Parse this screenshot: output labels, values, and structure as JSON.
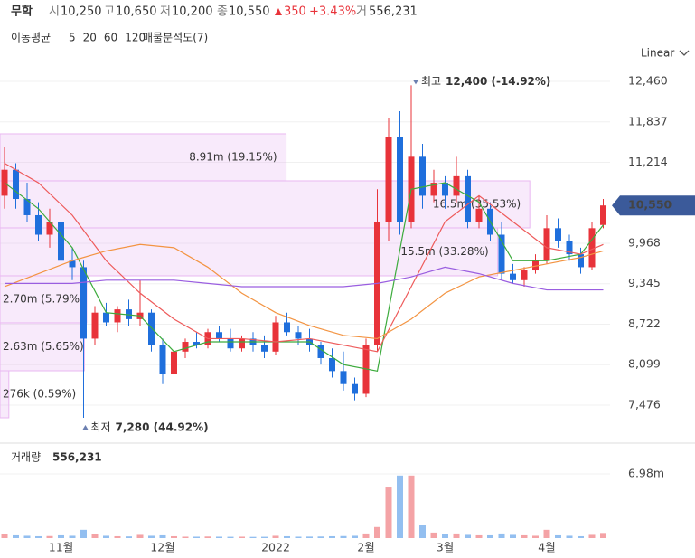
{
  "header": {
    "name": "무학",
    "open_label": "시",
    "open": "10,250",
    "high_label": "고",
    "high": "10,650",
    "low_label": "저",
    "low": "10,200",
    "close_label": "종",
    "close": "10,550",
    "change": "350",
    "change_pct": "+3.43%",
    "volume_label": "거",
    "volume": "556,231"
  },
  "indicator_bar": {
    "ma_title": "이동평균",
    "profile_title": "매물분석도(7)",
    "scale_button": "Linear"
  },
  "chart_data": {
    "type": "candlestick",
    "categories": [
      null,
      null,
      null,
      null,
      null,
      "11월",
      null,
      null,
      null,
      null,
      null,
      null,
      null,
      null,
      "12월",
      null,
      null,
      null,
      null,
      null,
      null,
      null,
      null,
      null,
      "2022",
      null,
      null,
      null,
      null,
      null,
      null,
      null,
      "2월",
      null,
      null,
      null,
      null,
      null,
      null,
      "3월",
      null,
      null,
      null,
      null,
      null,
      null,
      null,
      null,
      "4월",
      null,
      null,
      null,
      null,
      null
    ],
    "candles": {
      "up_color": "#e8333a",
      "down_color": "#1f6fdc",
      "open": [
        10700,
        11100,
        10650,
        10400,
        10100,
        10300,
        9700,
        9600,
        8500,
        8900,
        8750,
        8950,
        8800,
        8900,
        8400,
        7950,
        8300,
        8450,
        8400,
        8600,
        8500,
        8350,
        8500,
        8400,
        8300,
        8750,
        8600,
        8500,
        8400,
        8200,
        8000,
        7800,
        7650,
        8400,
        10300,
        11600,
        10300,
        11300,
        10700,
        10900,
        10700,
        11000,
        10300,
        10500,
        10100,
        9500,
        9400,
        9550,
        9700,
        10200,
        10000,
        9800,
        9600,
        10250
      ],
      "high": [
        11450,
        11200,
        10900,
        10600,
        10500,
        10350,
        9900,
        9700,
        9000,
        9050,
        9000,
        9100,
        9400,
        8950,
        8500,
        8350,
        8500,
        8600,
        8650,
        8700,
        8650,
        8550,
        8600,
        8550,
        8850,
        8900,
        8700,
        8650,
        8450,
        8350,
        8300,
        7900,
        8500,
        10800,
        11900,
        12000,
        12400,
        11500,
        11100,
        11000,
        11300,
        11100,
        10700,
        10600,
        10300,
        9650,
        9600,
        9800,
        10400,
        10350,
        10100,
        9900,
        10300,
        10650
      ],
      "low": [
        10500,
        10500,
        10300,
        10000,
        9900,
        9600,
        9400,
        7280,
        8400,
        8700,
        8600,
        8700,
        8700,
        8300,
        7800,
        7900,
        8200,
        8350,
        8350,
        8450,
        8300,
        8300,
        8300,
        8200,
        8250,
        8550,
        8400,
        8300,
        8100,
        7900,
        7700,
        7550,
        7600,
        8300,
        10000,
        10100,
        10200,
        10500,
        10600,
        10500,
        10600,
        10200,
        10200,
        10000,
        9400,
        9350,
        9300,
        9500,
        9650,
        9900,
        9700,
        9500,
        9550,
        10200
      ],
      "close": [
        11100,
        10650,
        10400,
        10100,
        10300,
        9700,
        9600,
        8500,
        8900,
        8750,
        8950,
        8800,
        8900,
        8400,
        7950,
        8300,
        8450,
        8400,
        8600,
        8500,
        8350,
        8500,
        8400,
        8300,
        8750,
        8600,
        8500,
        8400,
        8200,
        8000,
        7800,
        7650,
        8400,
        10300,
        11600,
        10300,
        11300,
        10700,
        10900,
        10700,
        11000,
        10300,
        10500,
        10100,
        9500,
        9400,
        9550,
        9700,
        10200,
        10000,
        9800,
        9600,
        10200,
        10550
      ]
    },
    "ylim": [
      6891,
      12669
    ],
    "yticks": [
      {
        "value": 7476,
        "label": "7,476"
      },
      {
        "value": 8099,
        "label": "8,099"
      },
      {
        "value": 8722,
        "label": "8,722"
      },
      {
        "value": 9345,
        "label": "9,345"
      },
      {
        "value": 9968,
        "label": "9,968"
      },
      {
        "value": 11214,
        "label": "11,214"
      },
      {
        "value": 11837,
        "label": "11,837"
      },
      {
        "value": 12460,
        "label": "12,460"
      }
    ],
    "grid": true,
    "current_price": {
      "value": 10550,
      "label": "10,550",
      "color": "#3b5a9a"
    },
    "price_high": {
      "prefix": "최고",
      "value": 12400,
      "label": "12,400 (-14.92%)"
    },
    "price_low": {
      "prefix": "최저",
      "value": 7280,
      "label": "7,280 (44.92%)"
    },
    "ma_x": [
      0,
      3,
      6,
      9,
      12,
      15,
      18,
      21,
      24,
      27,
      30,
      33,
      36,
      39,
      42,
      45,
      48,
      51,
      53
    ],
    "moving_averages": [
      {
        "name": "5",
        "color": "#3cab3c",
        "values": [
          10900,
          10500,
          9900,
          8900,
          8850,
          8300,
          8450,
          8450,
          8450,
          8450,
          8100,
          8000,
          10800,
          10900,
          10600,
          9700,
          9700,
          9800,
          10250
        ]
      },
      {
        "name": "20",
        "color": "#ee5a5a",
        "values": [
          11200,
          10900,
          10400,
          9700,
          9200,
          8800,
          8500,
          8500,
          8450,
          8500,
          8400,
          8300,
          9300,
          10300,
          10700,
          10300,
          9900,
          9800,
          9950
        ]
      },
      {
        "name": "60",
        "color": "#f39442",
        "values": [
          9300,
          9500,
          9700,
          9850,
          9950,
          9900,
          9600,
          9200,
          8900,
          8700,
          8550,
          8500,
          8800,
          9200,
          9450,
          9550,
          9650,
          9750,
          9850
        ]
      },
      {
        "name": "120",
        "color": "#9a5ee0",
        "values": [
          9350,
          9350,
          9350,
          9400,
          9400,
          9400,
          9350,
          9300,
          9300,
          9300,
          9300,
          9350,
          9450,
          9600,
          9500,
          9350,
          9250,
          9250,
          9250
        ]
      }
    ],
    "volume_profile": {
      "edges": [
        7281,
        8005,
        8743,
        9467,
        10205,
        10929,
        11653
      ],
      "values": [
        276000,
        2630000,
        2700000,
        15500000,
        16500000,
        8910000
      ],
      "value_labels": [
        "276k (0.59%)",
        "2.63m (5.65%)",
        "2.70m (5.79%)",
        "15.5m (33.28%)",
        "16.5m (35.53%)",
        "8.91m (19.15%)"
      ],
      "xlim": [
        0,
        19000000
      ],
      "color": "#e9b8f2"
    },
    "volume": {
      "title": "거래량",
      "latest": "556,231",
      "values": [
        400000,
        300000,
        250000,
        200000,
        220000,
        300000,
        250000,
        900000,
        400000,
        250000,
        200000,
        180000,
        350000,
        250000,
        300000,
        200000,
        150000,
        150000,
        170000,
        150000,
        140000,
        150000,
        130000,
        140000,
        250000,
        200000,
        150000,
        160000,
        170000,
        200000,
        220000,
        250000,
        500000,
        1200000,
        5500000,
        6800000,
        6800000,
        1400000,
        600000,
        400000,
        500000,
        350000,
        300000,
        300000,
        500000,
        350000,
        300000,
        250000,
        900000,
        300000,
        250000,
        200000,
        350000,
        556231
      ],
      "ylim": [
        0,
        10320000
      ],
      "yticks": [
        {
          "value": 6980000,
          "label": "6.98m"
        }
      ],
      "up_color": "#f4a3a6",
      "down_color": "#93bff0"
    }
  }
}
